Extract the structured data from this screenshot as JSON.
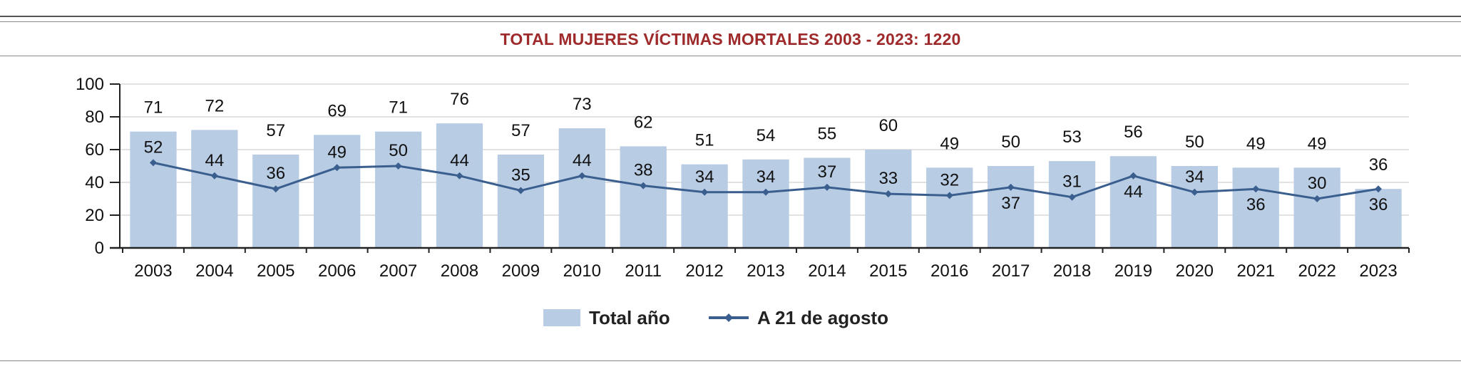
{
  "header": {
    "title": "TOTAL MUJERES VÍCTIMAS MORTALES 2003 - 2023: 1220"
  },
  "colors": {
    "bar": "#b8cce4",
    "line": "#3a5f8f",
    "title": "#9e2a2b",
    "grid": "#d9d9d9"
  },
  "chart_data": {
    "type": "bar",
    "title": "TOTAL MUJERES VÍCTIMAS MORTALES 2003 - 2023: 1220",
    "xlabel": "",
    "ylabel": "",
    "ylim": [
      0,
      100
    ],
    "yticks": [
      "0",
      "20",
      "40",
      "60",
      "80",
      "100"
    ],
    "grid": true,
    "legend_position": "bottom",
    "categories": [
      "2003",
      "2004",
      "2005",
      "2006",
      "2007",
      "2008",
      "2009",
      "2010",
      "2011",
      "2012",
      "2013",
      "2014",
      "2015",
      "2016",
      "2017",
      "2018",
      "2019",
      "2020",
      "2021",
      "2022",
      "2023"
    ],
    "series": [
      {
        "name": "Total año",
        "type": "bar",
        "values": [
          71,
          72,
          57,
          69,
          71,
          76,
          57,
          73,
          62,
          51,
          54,
          55,
          60,
          49,
          50,
          53,
          56,
          50,
          49,
          49,
          36
        ]
      },
      {
        "name": "A 21 de agosto",
        "type": "line",
        "values": [
          52,
          44,
          36,
          49,
          50,
          44,
          35,
          44,
          38,
          34,
          34,
          37,
          33,
          32,
          37,
          31,
          44,
          34,
          36,
          30,
          36
        ]
      }
    ]
  }
}
